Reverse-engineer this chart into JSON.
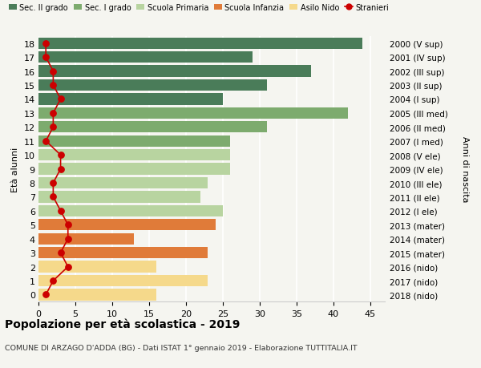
{
  "ages": [
    18,
    17,
    16,
    15,
    14,
    13,
    12,
    11,
    10,
    9,
    8,
    7,
    6,
    5,
    4,
    3,
    2,
    1,
    0
  ],
  "right_labels": [
    "2000 (V sup)",
    "2001 (IV sup)",
    "2002 (III sup)",
    "2003 (II sup)",
    "2004 (I sup)",
    "2005 (III med)",
    "2006 (II med)",
    "2007 (I med)",
    "2008 (V ele)",
    "2009 (IV ele)",
    "2010 (III ele)",
    "2011 (II ele)",
    "2012 (I ele)",
    "2013 (mater)",
    "2014 (mater)",
    "2015 (mater)",
    "2016 (nido)",
    "2017 (nido)",
    "2018 (nido)"
  ],
  "bar_values": [
    44,
    29,
    37,
    31,
    25,
    42,
    31,
    26,
    26,
    26,
    23,
    22,
    25,
    24,
    13,
    23,
    16,
    23,
    16
  ],
  "bar_colors": [
    "#4a7c59",
    "#4a7c59",
    "#4a7c59",
    "#4a7c59",
    "#4a7c59",
    "#7dab6e",
    "#7dab6e",
    "#7dab6e",
    "#b8d4a0",
    "#b8d4a0",
    "#b8d4a0",
    "#b8d4a0",
    "#b8d4a0",
    "#e07b39",
    "#e07b39",
    "#e07b39",
    "#f5d98b",
    "#f5d98b",
    "#f5d98b"
  ],
  "stranieri_values": [
    1,
    1,
    2,
    2,
    3,
    2,
    2,
    1,
    3,
    3,
    2,
    2,
    3,
    4,
    4,
    3,
    4,
    2,
    1
  ],
  "legend_labels": [
    "Sec. II grado",
    "Sec. I grado",
    "Scuola Primaria",
    "Scuola Infanzia",
    "Asilo Nido",
    "Stranieri"
  ],
  "legend_colors": [
    "#4a7c59",
    "#7dab6e",
    "#b8d4a0",
    "#e07b39",
    "#f5d98b",
    "#cc0000"
  ],
  "ylabel_left": "Età alunni",
  "ylabel_right": "Anni di nascita",
  "title": "Popolazione per età scolastica - 2019",
  "subtitle": "COMUNE DI ARZAGO D'ADDA (BG) - Dati ISTAT 1° gennaio 2019 - Elaborazione TUTTITALIA.IT",
  "xlim": [
    0,
    47
  ],
  "xticks": [
    0,
    5,
    10,
    15,
    20,
    25,
    30,
    35,
    40,
    45
  ],
  "bg_color": "#f5f5f0",
  "stranieri_color": "#cc0000",
  "grid_color": "#ffffff",
  "bar_height": 0.82
}
